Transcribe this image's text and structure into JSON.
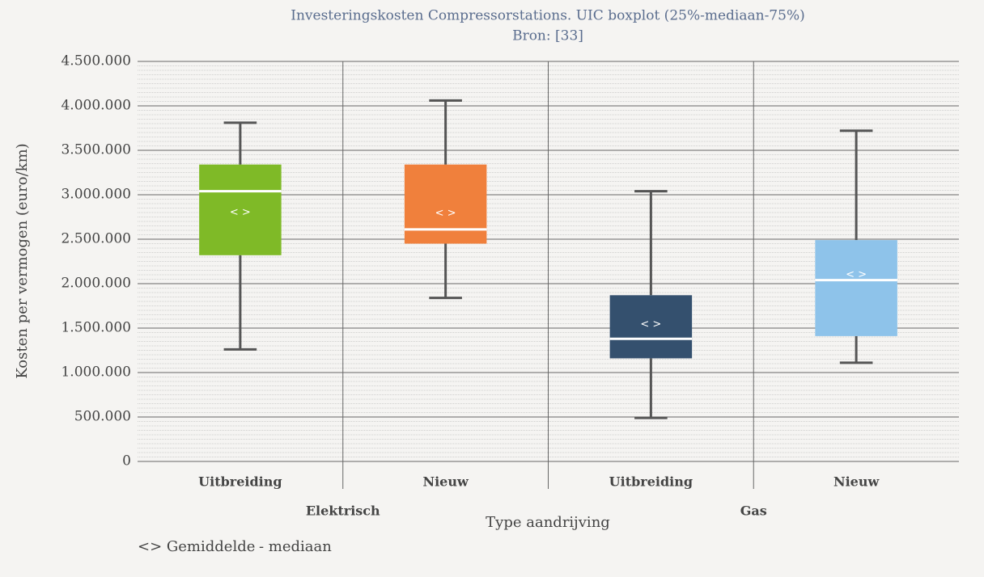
{
  "chart_data": {
    "type": "boxplot",
    "title": "Investeringskosten Compressorstations. UIC boxplot (25%-mediaan-75%)",
    "subtitle": "Bron: [33]",
    "y_label": "Kosten per vermogen (euro/km)",
    "x_label": "Type aandrijving",
    "mean_symbol": "< >",
    "legend": [
      "<> Gemiddelde",
      "- mediaan"
    ],
    "ylim": [
      0,
      4500000
    ],
    "yticks": [
      0,
      {
        "value": 500000,
        "label": "500.000"
      },
      {
        "value": 1000000,
        "label": "1.000.000"
      },
      {
        "value": 1500000,
        "label": "1.500.000"
      },
      {
        "value": 2000000,
        "label": "2.000.000"
      },
      {
        "value": 2500000,
        "label": "2.500.000"
      },
      {
        "value": 3000000,
        "label": "3.000.000"
      },
      {
        "value": 3500000,
        "label": "3.500.000"
      },
      {
        "value": 4000000,
        "label": "4.000.000"
      },
      {
        "value": 4500000,
        "label": "4.500.000"
      }
    ],
    "grid": true,
    "minor_grid": true,
    "groups": [
      {
        "label": "Elektrisch",
        "boxes": [
          {
            "category": "Uitbreiding",
            "color": "#7fba27",
            "min": 1260000,
            "q1": 2320000,
            "median": 3040000,
            "mean": 2800000,
            "q3": 3340000,
            "max": 3810000
          },
          {
            "category": "Nieuw",
            "color": "#f0803c",
            "min": 1840000,
            "q1": 2450000,
            "median": 2610000,
            "mean": 2790000,
            "q3": 3340000,
            "max": 4060000
          }
        ]
      },
      {
        "label": "Gas",
        "boxes": [
          {
            "category": "Uitbreiding",
            "color": "#34506e",
            "min": 490000,
            "q1": 1160000,
            "median": 1380000,
            "mean": 1540000,
            "q3": 1870000,
            "max": 3040000
          },
          {
            "category": "Nieuw",
            "color": "#8ec3ea",
            "min": 1110000,
            "q1": 1410000,
            "median": 2040000,
            "mean": 2100000,
            "q3": 2490000,
            "max": 3720000
          }
        ]
      }
    ]
  }
}
